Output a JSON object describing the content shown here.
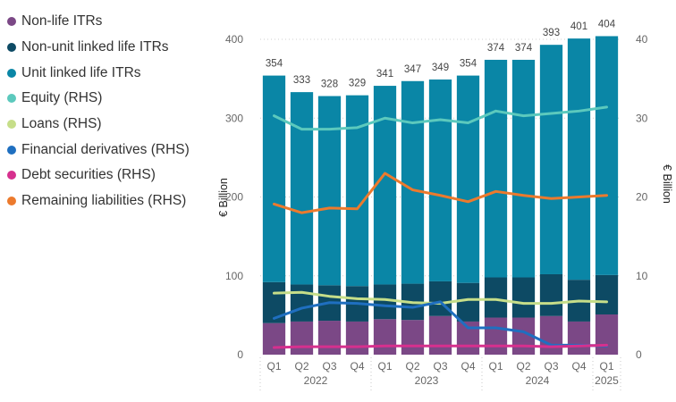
{
  "chart_data": {
    "type": "bar",
    "title": "",
    "categories": [
      "Q1 2022",
      "Q2 2022",
      "Q3 2022",
      "Q4 2022",
      "Q1 2023",
      "Q2 2023",
      "Q3 2023",
      "Q4 2023",
      "Q1 2024",
      "Q2 2024",
      "Q3 2024",
      "Q4 2024",
      "Q1 2025"
    ],
    "quarter_labels": [
      "Q1",
      "Q2",
      "Q3",
      "Q4",
      "Q1",
      "Q2",
      "Q3",
      "Q4",
      "Q1",
      "Q2",
      "Q3",
      "Q4",
      "Q1"
    ],
    "year_groups": [
      {
        "label": "2022",
        "start": 0,
        "end": 3
      },
      {
        "label": "2023",
        "start": 4,
        "end": 7
      },
      {
        "label": "2024",
        "start": 8,
        "end": 11
      },
      {
        "label": "2025",
        "start": 12,
        "end": 12
      }
    ],
    "ylabel": "€ Billion",
    "y2label": "€ Billion",
    "ylim": [
      0,
      400
    ],
    "y2lim": [
      0,
      40
    ],
    "yticks": [
      0,
      100,
      200,
      300,
      400
    ],
    "y2ticks": [
      0,
      10,
      20,
      30,
      40
    ],
    "totals": [
      354,
      333,
      328,
      329,
      341,
      347,
      349,
      354,
      374,
      374,
      393,
      401,
      404
    ],
    "bar_series": [
      {
        "name": "Non-life ITRs",
        "color": "#7b4886",
        "values": [
          40,
          42,
          43,
          42,
          45,
          44,
          49,
          42,
          47,
          47,
          49,
          42,
          51
        ]
      },
      {
        "name": "Non-unit linked life ITRs",
        "color": "#0d4a64",
        "values": [
          52,
          47,
          45,
          45,
          44,
          46,
          44,
          49,
          51,
          51,
          53,
          53,
          50
        ]
      },
      {
        "name": "Unit linked life ITRs",
        "color": "#0a86a6",
        "values": [
          262,
          244,
          240,
          242,
          252,
          257,
          256,
          263,
          276,
          276,
          291,
          306,
          303
        ]
      }
    ],
    "line_series": [
      {
        "name": "Equity (RHS)",
        "color": "#5cc9bd",
        "values": [
          30.3,
          28.6,
          28.6,
          28.8,
          30.0,
          29.4,
          29.8,
          29.4,
          30.9,
          30.3,
          30.6,
          30.9,
          31.4
        ]
      },
      {
        "name": "Loans (RHS)",
        "color": "#c6de89",
        "values": [
          7.8,
          7.9,
          7.4,
          7.1,
          7.0,
          6.6,
          6.5,
          7.0,
          7.0,
          6.5,
          6.5,
          6.8,
          6.7
        ]
      },
      {
        "name": "Financial derivatives (RHS)",
        "color": "#1f6fc0",
        "values": [
          4.6,
          5.9,
          6.6,
          6.5,
          6.2,
          6.0,
          6.7,
          3.4,
          3.4,
          2.9,
          1.2,
          1.2,
          1.1
        ]
      },
      {
        "name": "Debt securities (RHS)",
        "color": "#d6308e",
        "values": [
          0.9,
          1.0,
          1.0,
          1.0,
          1.1,
          1.1,
          1.1,
          1.1,
          1.1,
          1.1,
          1.0,
          1.1,
          1.2
        ]
      },
      {
        "name": "Remaining liabilities (RHS)",
        "color": "#ec7a2d",
        "values": [
          19.1,
          18.0,
          18.6,
          18.5,
          23.0,
          20.9,
          20.2,
          19.4,
          20.7,
          20.2,
          19.8,
          20.0,
          20.2
        ]
      }
    ],
    "legend": [
      {
        "label": "Non-life ITRs",
        "color": "#7b4886"
      },
      {
        "label": "Non-unit linked life ITRs",
        "color": "#0d4a64"
      },
      {
        "label": "Unit linked life ITRs",
        "color": "#0a86a6"
      },
      {
        "label": "Equity (RHS)",
        "color": "#5cc9bd"
      },
      {
        "label": "Loans (RHS)",
        "color": "#c6de89"
      },
      {
        "label": "Financial derivatives (RHS)",
        "color": "#1f6fc0"
      },
      {
        "label": "Debt securities (RHS)",
        "color": "#d6308e"
      },
      {
        "label": "Remaining liabilities (RHS)",
        "color": "#ec7a2d"
      }
    ],
    "legend_position": "left",
    "grid": true
  }
}
